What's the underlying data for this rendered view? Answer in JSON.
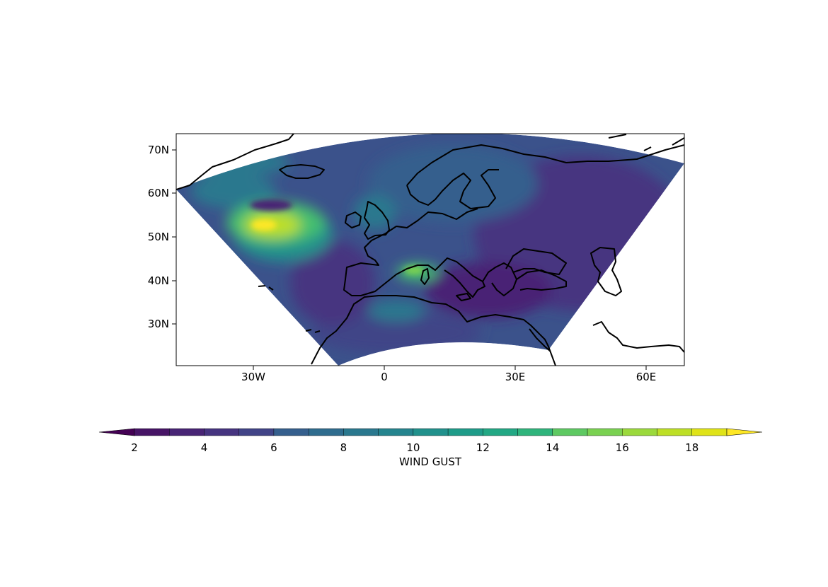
{
  "map": {
    "y_ticks": [
      "70N",
      "60N",
      "50N",
      "40N",
      "30N"
    ],
    "x_ticks": [
      "30W",
      "0",
      "30E",
      "60E"
    ],
    "field_colors": [
      "#440154",
      "#482475",
      "#414487",
      "#355f8d",
      "#2a788e",
      "#21918c",
      "#22a884",
      "#44bf70",
      "#7ad151",
      "#bddf26",
      "#fde725"
    ],
    "land_outline_color": "#000000"
  },
  "colorbar": {
    "label": "WIND GUST",
    "tick_labels": [
      "2",
      "4",
      "6",
      "8",
      "10",
      "12",
      "14",
      "16",
      "18"
    ],
    "levels": [
      2,
      3,
      4,
      5,
      6,
      7,
      8,
      9,
      10,
      11,
      12,
      13,
      14,
      15,
      16,
      17,
      18,
      19
    ],
    "extend": "both",
    "colors": [
      "#440154",
      "#471466",
      "#482475",
      "#463480",
      "#414487",
      "#3b528b",
      "#355f8d",
      "#2f6c8e",
      "#2a788e",
      "#25848e",
      "#21918c",
      "#1e9c89",
      "#22a884",
      "#2fb47c",
      "#44bf70",
      "#5ec962",
      "#7ad151",
      "#9bd93c",
      "#bddf26",
      "#dfe318",
      "#fde725"
    ]
  }
}
